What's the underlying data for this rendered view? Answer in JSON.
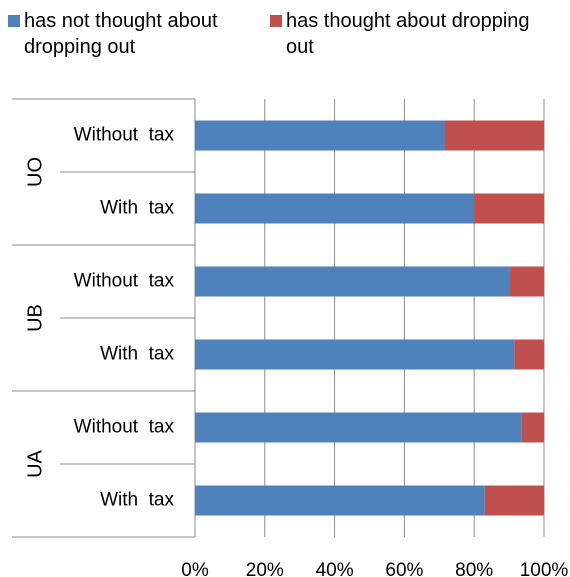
{
  "chart_data": {
    "type": "bar",
    "orientation": "horizontal",
    "stacked": "percent",
    "groups": [
      {
        "label": "UO",
        "bars": [
          {
            "label": "Without  tax",
            "values": [
              71.5,
              28.5
            ]
          },
          {
            "label": "With  tax",
            "values": [
              80,
              20
            ]
          }
        ]
      },
      {
        "label": "UB",
        "bars": [
          {
            "label": "Without  tax",
            "values": [
              90,
              10
            ]
          },
          {
            "label": "With  tax",
            "values": [
              91.5,
              8.5
            ]
          }
        ]
      },
      {
        "label": "UA",
        "bars": [
          {
            "label": "Without  tax",
            "values": [
              93.5,
              6.5
            ]
          },
          {
            "label": "With  tax",
            "values": [
              83,
              17
            ]
          }
        ]
      }
    ],
    "series": [
      {
        "name": "has not thought about dropping out",
        "color": "#4f81bd"
      },
      {
        "name": "has thought about dropping out",
        "color": "#c0504d"
      }
    ],
    "xticks": [
      "0%",
      "20%",
      "40%",
      "60%",
      "80%",
      "100%"
    ],
    "xlim": [
      0,
      100
    ],
    "grid": true,
    "legend_position": "top"
  }
}
